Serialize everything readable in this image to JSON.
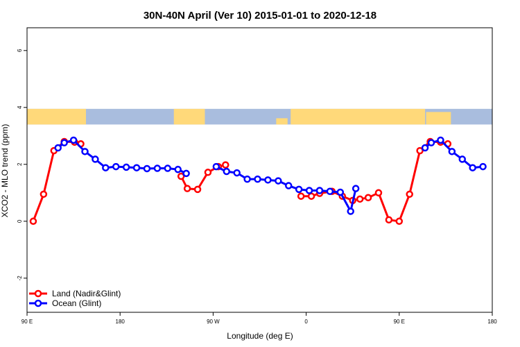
{
  "chart_data": {
    "type": "line",
    "title": "30N-40N April (Ver 10)   2015-01-01 to 2020-12-18",
    "xlabel": "Longitude (deg E)",
    "ylabel": "XCO2 - MLO trend (ppm)",
    "xlim": [
      90,
      540
    ],
    "ylim": [
      -3.2,
      6.8
    ],
    "x_ticks": [
      {
        "value": 90,
        "label": "90 E"
      },
      {
        "value": 180,
        "label": "180"
      },
      {
        "value": 270,
        "label": "90 W"
      },
      {
        "value": 360,
        "label": "0"
      },
      {
        "value": 450,
        "label": "90 E"
      },
      {
        "value": 540,
        "label": "180"
      }
    ],
    "y_ticks": [
      {
        "value": -2,
        "label": "-2"
      },
      {
        "value": 0,
        "label": "0"
      },
      {
        "value": 2,
        "label": "2"
      },
      {
        "value": 4,
        "label": "4"
      },
      {
        "value": 6,
        "label": "6"
      }
    ],
    "legend_position": "bottom-left",
    "land_mask_strip": {
      "ylim": [
        3.4,
        3.95
      ],
      "land_color": "#FFD97A",
      "ocean_color": "#A9BDDE"
    },
    "series": [
      {
        "name": "Land (Nadir&Glint)",
        "color": "#FF0000",
        "segments": [
          [
            {
              "x": 96,
              "y": 0.0
            },
            {
              "x": 106,
              "y": 0.95
            },
            {
              "x": 116,
              "y": 2.48
            },
            {
              "x": 126,
              "y": 2.8
            },
            {
              "x": 136,
              "y": 2.78
            },
            {
              "x": 142,
              "y": 2.72
            }
          ],
          [
            {
              "x": 239,
              "y": 1.58
            },
            {
              "x": 245,
              "y": 1.15
            },
            {
              "x": 255,
              "y": 1.12
            },
            {
              "x": 265,
              "y": 1.72
            },
            {
              "x": 275,
              "y": 1.92
            },
            {
              "x": 282,
              "y": 1.98
            }
          ],
          [
            {
              "x": 355,
              "y": 0.88
            },
            {
              "x": 365,
              "y": 0.88
            },
            {
              "x": 373,
              "y": 0.98
            },
            {
              "x": 385,
              "y": 1.05
            },
            {
              "x": 395,
              "y": 0.88
            },
            {
              "x": 405,
              "y": 0.73
            },
            {
              "x": 412,
              "y": 0.78
            },
            {
              "x": 420,
              "y": 0.83
            },
            {
              "x": 430,
              "y": 1.0
            },
            {
              "x": 440,
              "y": 0.05
            },
            {
              "x": 450,
              "y": 0.0
            },
            {
              "x": 460,
              "y": 0.95
            },
            {
              "x": 470,
              "y": 2.48
            },
            {
              "x": 480,
              "y": 2.8
            },
            {
              "x": 490,
              "y": 2.78
            },
            {
              "x": 497,
              "y": 2.72
            }
          ]
        ]
      },
      {
        "name": "Ocean (Glint)",
        "color": "#0000FF",
        "segments": [
          [
            {
              "x": 120,
              "y": 2.58
            },
            {
              "x": 126,
              "y": 2.76
            },
            {
              "x": 135,
              "y": 2.85
            },
            {
              "x": 146,
              "y": 2.45
            },
            {
              "x": 156,
              "y": 2.18
            },
            {
              "x": 166,
              "y": 1.88
            },
            {
              "x": 176,
              "y": 1.92
            },
            {
              "x": 186,
              "y": 1.9
            },
            {
              "x": 196,
              "y": 1.88
            },
            {
              "x": 206,
              "y": 1.85
            },
            {
              "x": 216,
              "y": 1.86
            },
            {
              "x": 226,
              "y": 1.86
            },
            {
              "x": 236,
              "y": 1.82
            },
            {
              "x": 244,
              "y": 1.68
            }
          ],
          [
            {
              "x": 273,
              "y": 1.92
            },
            {
              "x": 283,
              "y": 1.75
            },
            {
              "x": 293,
              "y": 1.7
            },
            {
              "x": 303,
              "y": 1.48
            },
            {
              "x": 313,
              "y": 1.48
            },
            {
              "x": 323,
              "y": 1.45
            },
            {
              "x": 333,
              "y": 1.42
            },
            {
              "x": 343,
              "y": 1.25
            },
            {
              "x": 353,
              "y": 1.12
            },
            {
              "x": 363,
              "y": 1.08
            },
            {
              "x": 373,
              "y": 1.08
            },
            {
              "x": 383,
              "y": 1.05
            },
            {
              "x": 393,
              "y": 1.02
            },
            {
              "x": 403,
              "y": 0.35
            },
            {
              "x": 408,
              "y": 1.15
            }
          ],
          [
            {
              "x": 475,
              "y": 2.58
            },
            {
              "x": 481,
              "y": 2.76
            },
            {
              "x": 490,
              "y": 2.85
            },
            {
              "x": 501,
              "y": 2.45
            },
            {
              "x": 511,
              "y": 2.18
            },
            {
              "x": 521,
              "y": 1.88
            },
            {
              "x": 531,
              "y": 1.92
            }
          ]
        ]
      }
    ]
  }
}
